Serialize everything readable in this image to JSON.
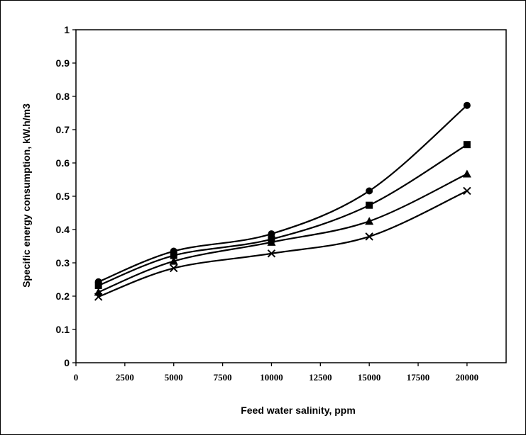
{
  "chart_data": {
    "type": "line",
    "title": "",
    "xlabel": "Feed water salinity, ppm",
    "ylabel": "Specific energy consumption, kW.h/m3",
    "xlim": [
      0,
      22000
    ],
    "ylim": [
      0,
      1
    ],
    "xticks": [
      0,
      2500,
      5000,
      7500,
      10000,
      12500,
      15000,
      17500,
      20000
    ],
    "xtick_labels": [
      "0",
      "2500",
      "5000",
      "7500",
      "10000",
      "12500",
      "15000",
      "17500",
      "20000"
    ],
    "yticks": [
      0,
      0.1,
      0.2,
      0.3,
      0.4,
      0.5,
      0.6,
      0.7,
      0.8,
      0.9,
      1
    ],
    "ytick_labels": [
      "0",
      "0.1",
      "0.2",
      "0.3",
      "0.4",
      "0.5",
      "0.6",
      "0.7",
      "0.8",
      "0.9",
      "1"
    ],
    "grid": false,
    "legend": "none",
    "series": [
      {
        "marker": "circle",
        "color": "#000000",
        "x": [
          1150,
          5000,
          10000,
          15000,
          20000
        ],
        "y": [
          0.243,
          0.335,
          0.387,
          0.516,
          0.773
        ]
      },
      {
        "marker": "square",
        "color": "#000000",
        "x": [
          1150,
          5000,
          10000,
          15000,
          20000
        ],
        "y": [
          0.232,
          0.322,
          0.371,
          0.473,
          0.655
        ]
      },
      {
        "marker": "triangle",
        "color": "#000000",
        "x": [
          1150,
          5000,
          10000,
          15000,
          20000
        ],
        "y": [
          0.212,
          0.305,
          0.362,
          0.425,
          0.567
        ]
      },
      {
        "marker": "x",
        "color": "#000000",
        "x": [
          1150,
          5000,
          10000,
          15000,
          20000
        ],
        "y": [
          0.198,
          0.284,
          0.328,
          0.379,
          0.516
        ]
      }
    ]
  }
}
